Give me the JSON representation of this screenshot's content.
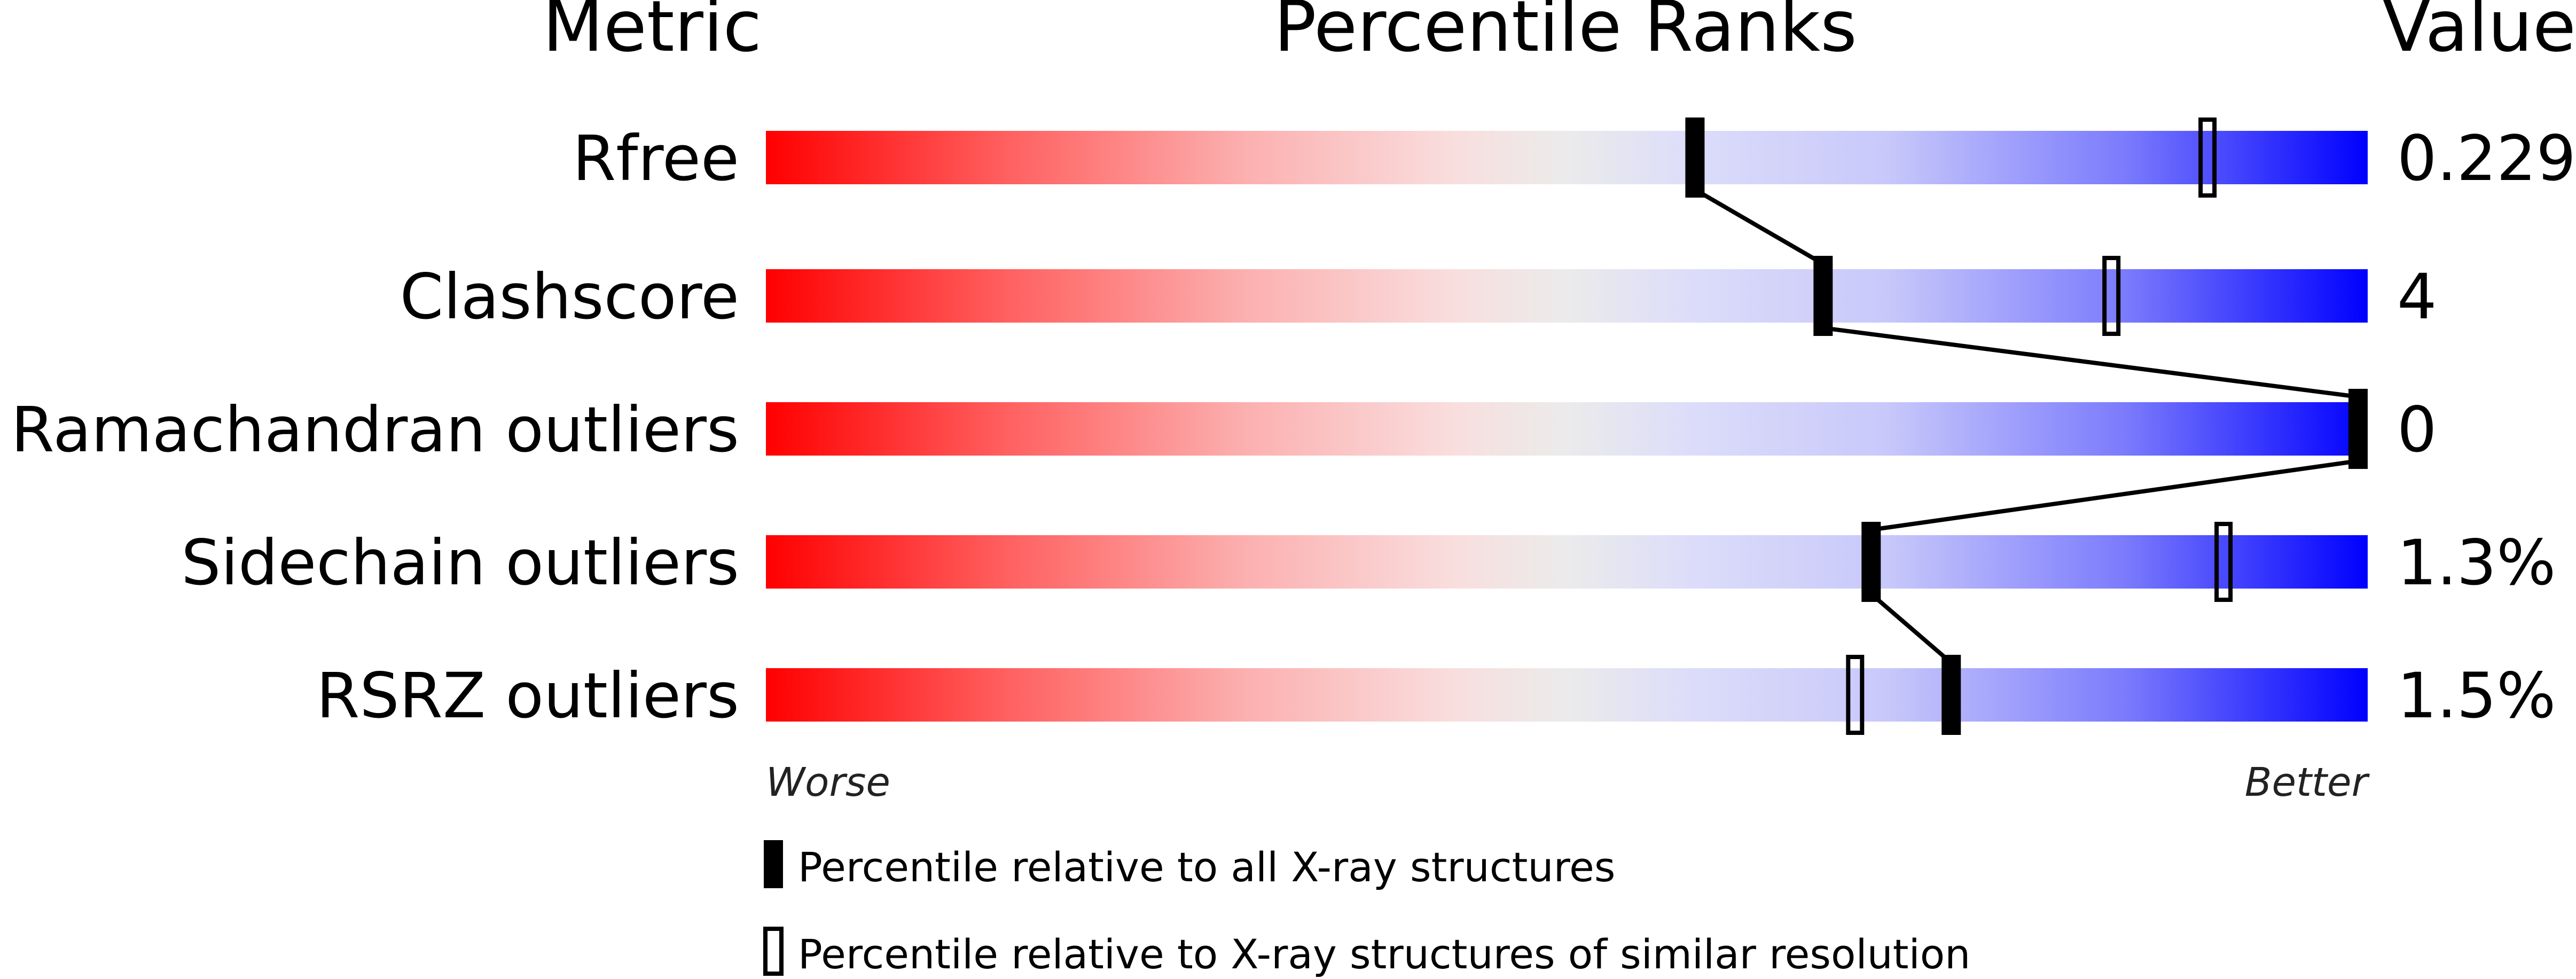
{
  "chart_data": {
    "type": "percentile-slider",
    "headers": {
      "metric": "Metric",
      "ranks": "Percentile Ranks",
      "value": "Value"
    },
    "xlim": [
      0,
      100
    ],
    "axis_labels": {
      "left": "Worse",
      "right": "Better"
    },
    "gradient_colors": {
      "worse": "#ff0000",
      "middle": "#eeeeee",
      "better": "#0000ff"
    },
    "rows": [
      {
        "metric": "Rfree",
        "value": "0.229",
        "percentile_all": 58,
        "percentile_similar": 90
      },
      {
        "metric": "Clashscore",
        "value": "4",
        "percentile_all": 66,
        "percentile_similar": 84
      },
      {
        "metric": "Ramachandran outliers",
        "value": "0",
        "percentile_all": 100,
        "percentile_similar": null
      },
      {
        "metric": "Sidechain outliers",
        "value": "1.3%",
        "percentile_all": 69,
        "percentile_similar": 91
      },
      {
        "metric": "RSRZ outliers",
        "value": "1.5%",
        "percentile_all": 74,
        "percentile_similar": 68
      }
    ],
    "legend": [
      {
        "marker": "filled",
        "label": "Percentile relative to all X-ray structures"
      },
      {
        "marker": "open",
        "label": "Percentile relative to X-ray structures of similar resolution"
      }
    ]
  }
}
